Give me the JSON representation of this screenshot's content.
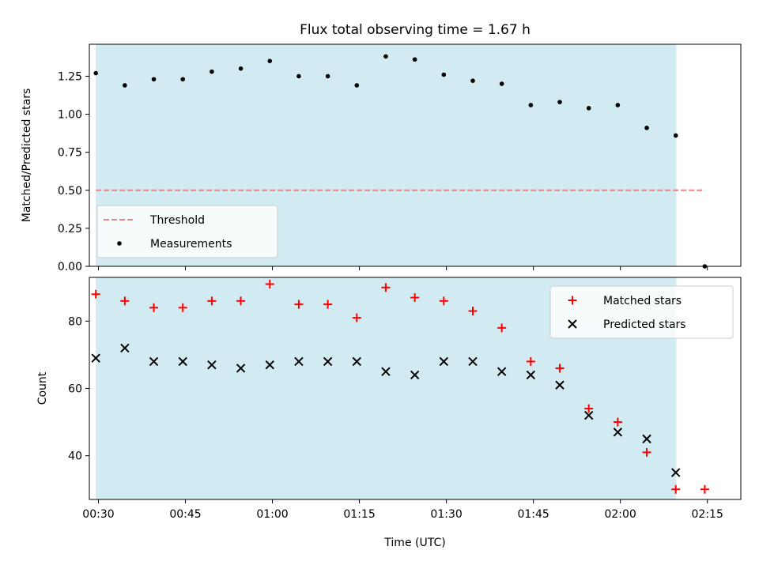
{
  "figure": {
    "title": "Flux total observing time = 1.67 h"
  },
  "chart_data": [
    {
      "type": "scatter",
      "title": "Flux total observing time = 1.67 h",
      "ylabel": "Matched/Predicted stars",
      "xlabel": "",
      "xlim": [
        "00:28:26",
        "02:20:46"
      ],
      "ylim": [
        0,
        1.46
      ],
      "yticks": [
        "0.00",
        "0.25",
        "0.50",
        "0.75",
        "1.00",
        "1.25"
      ],
      "shaded_span": {
        "x0": "00:29:33",
        "x1": "02:09:39",
        "color": "#add8e6"
      },
      "x": [
        "00:29:33",
        "00:34:33",
        "00:39:33",
        "00:44:33",
        "00:49:33",
        "00:54:33",
        "00:59:33",
        "01:04:33",
        "01:09:33",
        "01:14:33",
        "01:19:33",
        "01:24:33",
        "01:29:33",
        "01:34:33",
        "01:39:33",
        "01:44:33",
        "01:49:33",
        "01:54:33",
        "01:59:33",
        "02:04:33",
        "02:09:33",
        "02:14:33"
      ],
      "series": [
        {
          "name": "Measurements",
          "marker": "dot",
          "color": "#000000",
          "values": [
            1.27,
            1.19,
            1.23,
            1.23,
            1.28,
            1.3,
            1.35,
            1.25,
            1.25,
            1.19,
            1.38,
            1.36,
            1.26,
            1.22,
            1.2,
            1.06,
            1.08,
            1.04,
            1.06,
            0.91,
            0.86,
            0.0
          ]
        },
        {
          "name": "Threshold",
          "style": "dashed",
          "color": "#f08080",
          "x": [
            "00:29:33",
            "02:14:33"
          ],
          "values": [
            0.5,
            0.5
          ]
        }
      ],
      "legend": {
        "position": "lower-left",
        "entries": [
          "Threshold",
          "Measurements"
        ]
      }
    },
    {
      "type": "scatter",
      "title": "",
      "ylabel": "Count",
      "xlabel": "Time (UTC)",
      "xlim": [
        "00:28:26",
        "02:20:46"
      ],
      "ylim": [
        27,
        93
      ],
      "yticks": [
        "40",
        "60",
        "80"
      ],
      "xticks": [
        "00:30",
        "00:45",
        "01:00",
        "01:15",
        "01:30",
        "01:45",
        "02:00",
        "02:15"
      ],
      "shaded_span": {
        "x0": "00:29:33",
        "x1": "02:09:39",
        "color": "#add8e6"
      },
      "x": [
        "00:29:33",
        "00:34:33",
        "00:39:33",
        "00:44:33",
        "00:49:33",
        "00:54:33",
        "00:59:33",
        "01:04:33",
        "01:09:33",
        "01:14:33",
        "01:19:33",
        "01:24:33",
        "01:29:33",
        "01:34:33",
        "01:39:33",
        "01:44:33",
        "01:49:33",
        "01:54:33",
        "01:59:33",
        "02:04:33",
        "02:09:33",
        "02:14:33"
      ],
      "series": [
        {
          "name": "Matched stars",
          "marker": "plus",
          "color": "#ff0000",
          "values": [
            88,
            86,
            84,
            84,
            86,
            86,
            91,
            85,
            85,
            81,
            90,
            87,
            86,
            83,
            78,
            68,
            66,
            54,
            50,
            41,
            30,
            30
          ]
        },
        {
          "name": "Predicted stars",
          "marker": "x",
          "color": "#000000",
          "values": [
            69,
            72,
            68,
            68,
            67,
            66,
            67,
            68,
            68,
            68,
            65,
            64,
            68,
            68,
            65,
            64,
            61,
            52,
            47,
            45,
            35,
            null
          ]
        }
      ],
      "legend": {
        "position": "upper-right",
        "entries": [
          "Matched stars",
          "Predicted stars"
        ]
      }
    }
  ]
}
